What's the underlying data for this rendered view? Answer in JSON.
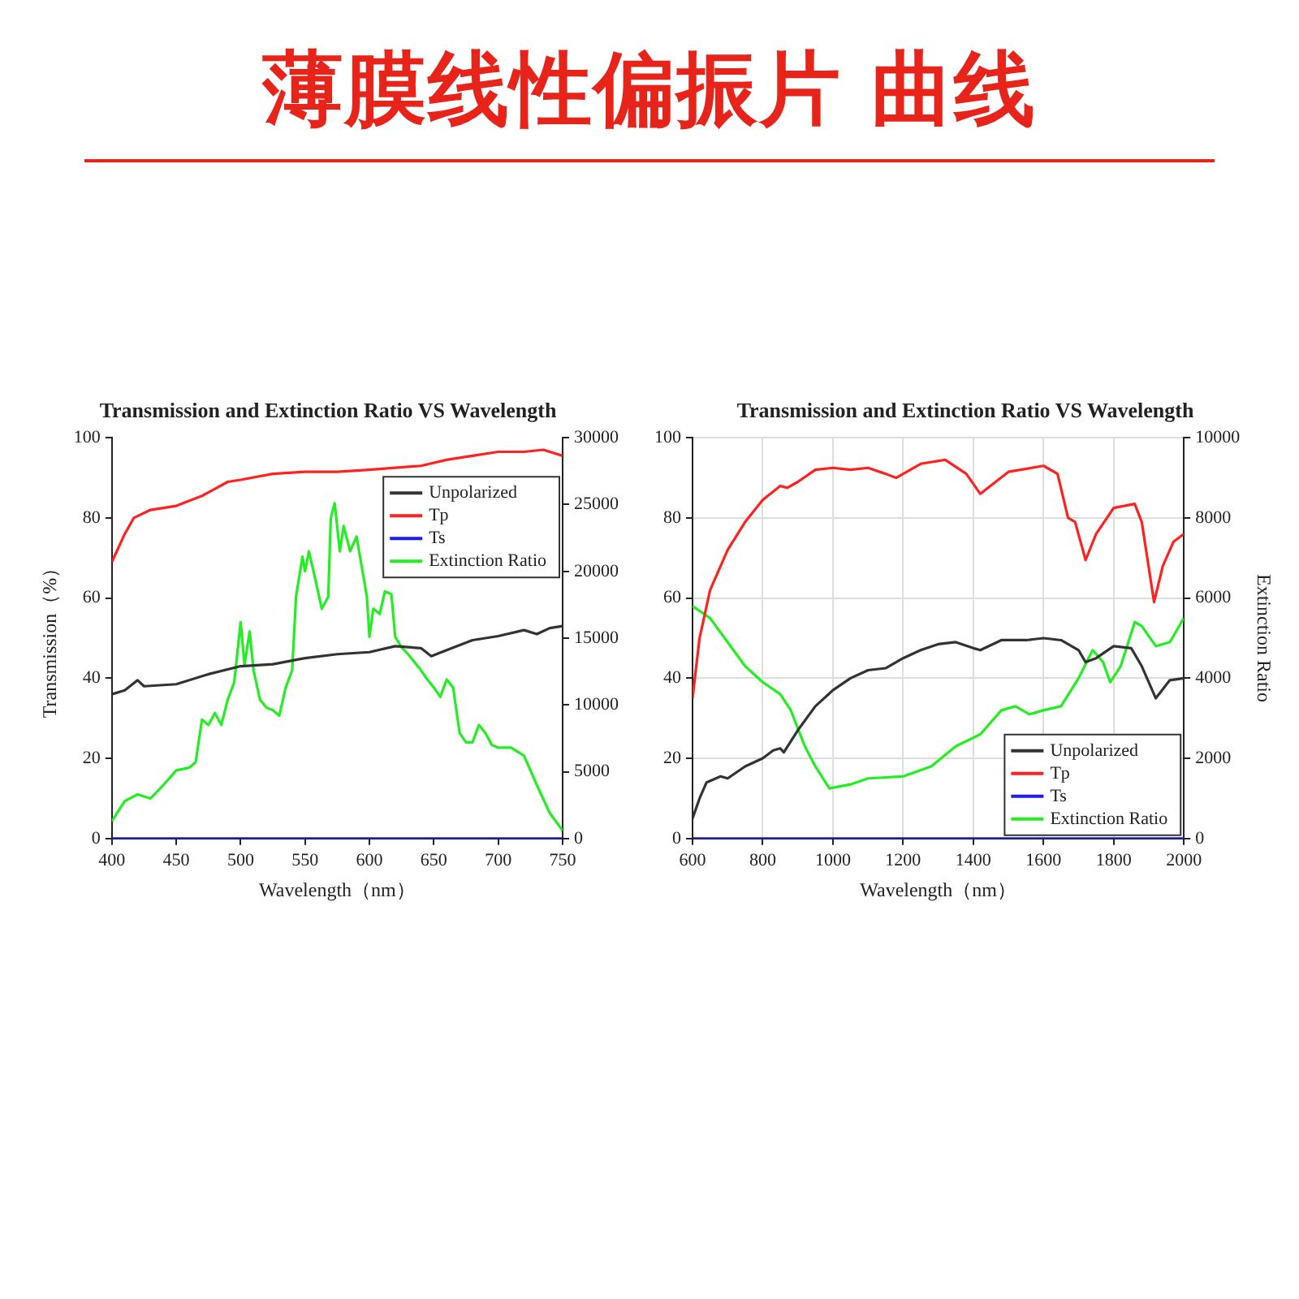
{
  "chart_data": [
    {
      "type": "other",
      "title": "薄膜线性偏振片 曲线"
    },
    {
      "type": "line",
      "title": "Transmission and Extinction Ratio VS Wavelength",
      "xlabel": "Wavelength（nm）",
      "ylabel": "Transmission（%）",
      "xlim": [
        400,
        750
      ],
      "xticks": [
        400,
        450,
        500,
        550,
        600,
        650,
        700,
        750
      ],
      "ylim": [
        0,
        100
      ],
      "yticks": [
        0,
        20,
        40,
        60,
        80,
        100
      ],
      "y2lim": [
        0,
        30000
      ],
      "y2ticks": [
        0,
        5000,
        10000,
        15000,
        20000,
        25000,
        30000
      ],
      "grid": false,
      "legend": "top right",
      "series": [
        {
          "name": "Unpolarized",
          "color": "#333333",
          "x": [
            400,
            410,
            420,
            425,
            450,
            475,
            500,
            525,
            550,
            575,
            600,
            620,
            640,
            648,
            660,
            680,
            700,
            720,
            730,
            740,
            750
          ],
          "values": [
            36,
            37,
            39.5,
            38,
            38.5,
            41,
            43,
            43.5,
            45,
            46,
            46.5,
            48,
            47.5,
            45.5,
            47,
            49.5,
            50.5,
            52,
            51,
            52.5,
            53
          ]
        },
        {
          "name": "Tp",
          "color": "#ff2020",
          "x": [
            400,
            410,
            417,
            430,
            450,
            470,
            490,
            500,
            525,
            550,
            575,
            600,
            620,
            640,
            660,
            680,
            700,
            720,
            735,
            750
          ],
          "values": [
            69,
            76,
            80,
            82,
            83,
            85.5,
            89,
            89.5,
            91,
            91.5,
            91.5,
            92,
            92.5,
            93,
            94.5,
            95.5,
            96.5,
            96.5,
            97,
            95.5
          ]
        },
        {
          "name": "Ts",
          "color": "#1a1aff",
          "x": [
            400,
            750
          ],
          "values": [
            0,
            0
          ]
        },
        {
          "name": "Extinction Ratio",
          "color": "#22ee22",
          "axis": "y2",
          "x": [
            400,
            410,
            420,
            430,
            440,
            450,
            460,
            465,
            470,
            475,
            480,
            485,
            490,
            495,
            500,
            503,
            507,
            510,
            515,
            520,
            525,
            530,
            535,
            540,
            543,
            548,
            550,
            553,
            558,
            563,
            568,
            570,
            573,
            577,
            580,
            585,
            590,
            595,
            598,
            600,
            603,
            608,
            612,
            617,
            620,
            625,
            630,
            640,
            645,
            650,
            655,
            660,
            665,
            670,
            675,
            680,
            685,
            690,
            695,
            700,
            710,
            720,
            730,
            740,
            750
          ],
          "values": [
            1300,
            2800,
            3300,
            3000,
            4000,
            5100,
            5300,
            5700,
            8900,
            8500,
            9400,
            8500,
            10400,
            11700,
            16200,
            13000,
            15500,
            12600,
            10400,
            9800,
            9600,
            9200,
            11300,
            12600,
            18100,
            21100,
            20000,
            21500,
            19400,
            17200,
            18100,
            24000,
            25100,
            21500,
            23400,
            21500,
            22600,
            19800,
            18100,
            15100,
            17200,
            16800,
            18500,
            18300,
            15100,
            14300,
            13800,
            12600,
            11900,
            11300,
            10600,
            11900,
            11300,
            7900,
            7200,
            7200,
            8500,
            7900,
            7000,
            6800,
            6800,
            6200,
            4000,
            1900,
            600
          ]
        }
      ]
    },
    {
      "type": "line",
      "title": "Transmission and Extinction Ratio VS Wavelength",
      "xlabel": "Wavelength（nm）",
      "y2label": "Extinction Ratio",
      "xlim": [
        600,
        2000
      ],
      "xticks": [
        600,
        800,
        1000,
        1200,
        1400,
        1600,
        1800,
        2000
      ],
      "ylim": [
        0,
        100
      ],
      "yticks": [
        0,
        20,
        40,
        60,
        80,
        100
      ],
      "y2lim": [
        0,
        10000
      ],
      "y2ticks": [
        0,
        2000,
        4000,
        6000,
        8000,
        10000
      ],
      "grid": true,
      "legend": "bottom right",
      "series": [
        {
          "name": "Unpolarized",
          "color": "#333333",
          "x": [
            600,
            620,
            640,
            680,
            700,
            750,
            800,
            830,
            850,
            860,
            900,
            950,
            1000,
            1050,
            1100,
            1150,
            1200,
            1250,
            1300,
            1350,
            1400,
            1420,
            1480,
            1550,
            1600,
            1650,
            1700,
            1720,
            1750,
            1800,
            1850,
            1880,
            1920,
            1960,
            2000
          ],
          "values": [
            5,
            10,
            14,
            15.5,
            15,
            18,
            20,
            22,
            22.5,
            21.5,
            27,
            33,
            37,
            40,
            42,
            42.5,
            45,
            47,
            48.5,
            49,
            47.5,
            47,
            49.5,
            49.5,
            50,
            49.5,
            47,
            44,
            45,
            48,
            47.5,
            43,
            35,
            39.5,
            40
          ]
        },
        {
          "name": "Tp",
          "color": "#ff2020",
          "x": [
            600,
            620,
            650,
            700,
            750,
            800,
            850,
            870,
            900,
            950,
            1000,
            1050,
            1100,
            1150,
            1180,
            1250,
            1320,
            1380,
            1420,
            1500,
            1600,
            1640,
            1670,
            1690,
            1720,
            1750,
            1800,
            1860,
            1880,
            1915,
            1940,
            1970,
            2000
          ],
          "values": [
            35,
            50,
            62,
            72,
            79,
            84.5,
            88,
            87.5,
            89,
            92,
            92.5,
            92,
            92.5,
            91,
            90,
            93.5,
            94.5,
            91,
            86,
            91.5,
            93,
            91,
            80,
            79,
            69.5,
            76,
            82.5,
            83.5,
            79,
            59,
            68,
            74,
            76
          ]
        },
        {
          "name": "Ts",
          "color": "#1a1aff",
          "x": [
            600,
            2000
          ],
          "values": [
            0,
            0
          ]
        },
        {
          "name": "Extinction Ratio",
          "color": "#22ee22",
          "axis": "y2",
          "x": [
            600,
            650,
            700,
            750,
            800,
            850,
            880,
            920,
            950,
            990,
            1050,
            1100,
            1200,
            1280,
            1350,
            1420,
            1480,
            1520,
            1560,
            1600,
            1650,
            1700,
            1740,
            1770,
            1790,
            1820,
            1860,
            1880,
            1920,
            1960,
            2000
          ],
          "values": [
            5800,
            5500,
            4900,
            4300,
            3900,
            3600,
            3200,
            2300,
            1800,
            1250,
            1350,
            1500,
            1550,
            1800,
            2300,
            2600,
            3200,
            3300,
            3100,
            3200,
            3300,
            4000,
            4700,
            4400,
            3900,
            4300,
            5400,
            5300,
            4800,
            4900,
            5500
          ]
        }
      ]
    }
  ]
}
